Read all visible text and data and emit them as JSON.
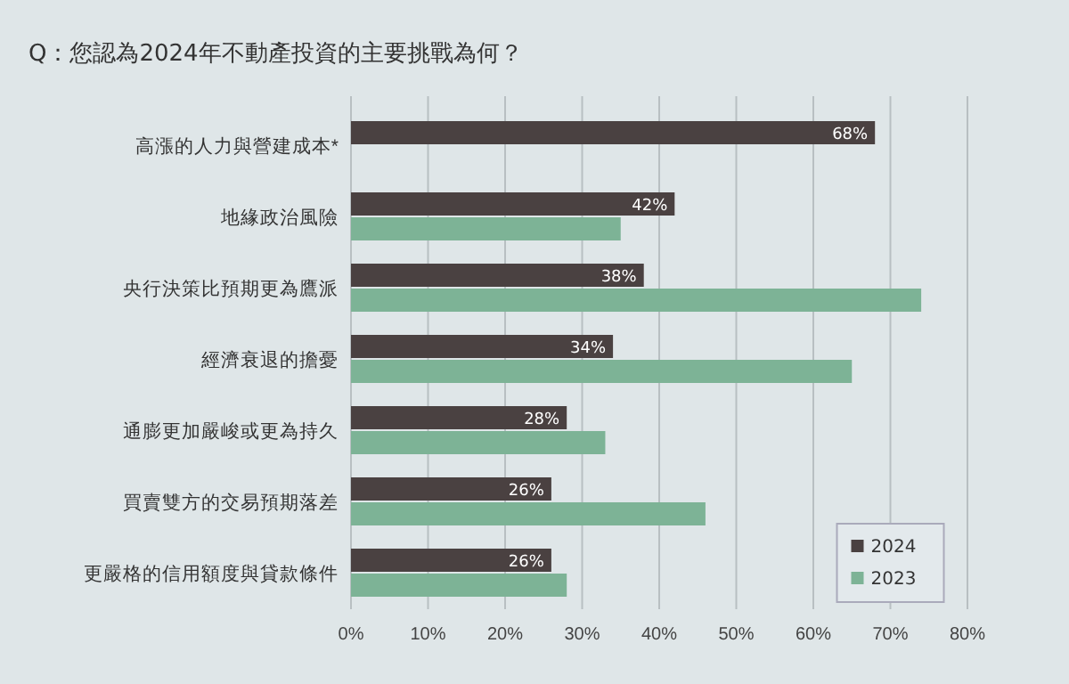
{
  "chart_data": {
    "type": "bar",
    "orientation": "horizontal",
    "title": "Q：您認為2024年不動產投資的主要挑戰為何？",
    "categories": [
      "高漲的人力與營建成本*",
      "地緣政治風險",
      "央行決策比預期更為鷹派",
      "經濟衰退的擔憂",
      "通膨更加嚴峻或更為持久",
      "買賣雙方的交易預期落差",
      "更嚴格的信用額度與貸款條件"
    ],
    "series": [
      {
        "name": "2024",
        "color": "#4a4141",
        "values": [
          68,
          42,
          38,
          34,
          28,
          26,
          26
        ],
        "value_labels": [
          "68%",
          "42%",
          "38%",
          "34%",
          "28%",
          "26%",
          "26%"
        ]
      },
      {
        "name": "2023",
        "color": "#7db396",
        "values": [
          null,
          35,
          74,
          65,
          33,
          46,
          28
        ]
      }
    ],
    "xlim": [
      0,
      80
    ],
    "xticks": [
      {
        "value": 0,
        "label": "0%"
      },
      {
        "value": 10,
        "label": "10%"
      },
      {
        "value": 20,
        "label": "20%"
      },
      {
        "value": 30,
        "label": "30%"
      },
      {
        "value": 40,
        "label": "40%"
      },
      {
        "value": 50,
        "label": "50%"
      },
      {
        "value": 60,
        "label": "60%"
      },
      {
        "value": 70,
        "label": "70%"
      },
      {
        "value": 80,
        "label": "80%"
      }
    ],
    "grid": "x",
    "legend": "bottom right"
  }
}
